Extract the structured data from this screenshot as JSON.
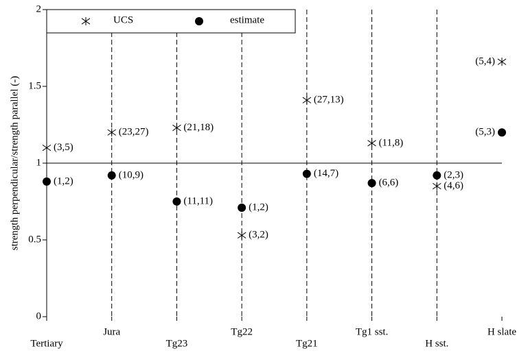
{
  "chart_data": {
    "type": "scatter",
    "y_label": "strength perpendicular/strength parallel (-)",
    "categories": [
      "Tertiary",
      "Jura",
      "Tg23",
      "Tg22",
      "Tg21",
      "Tg1 sst.",
      "H sst.",
      "H slate"
    ],
    "series": [
      {
        "name": "UCS",
        "marker": "star",
        "color": "#000000",
        "values": [
          1.1,
          1.2,
          1.23,
          0.53,
          1.41,
          1.13,
          0.85,
          1.66
        ],
        "point_labels": [
          "(3,5)",
          "(23,27)",
          "(21,18)",
          "(3,2)",
          "(27,13)",
          "(11,8)",
          "(4,6)",
          "(5,4)"
        ]
      },
      {
        "name": "estimate",
        "marker": "circle",
        "color": "#000000",
        "values": [
          0.88,
          0.92,
          0.75,
          0.71,
          0.93,
          0.87,
          0.92,
          1.2
        ],
        "point_labels": [
          "(1,2)",
          "(10,9)",
          "(11,11)",
          "(1,2)",
          "(14,7)",
          "(6,6)",
          "(2,3)",
          "(5,3)"
        ]
      }
    ],
    "reference_line": 1,
    "ylim": [
      0,
      2
    ],
    "yticks": [
      0,
      0.5,
      1,
      1.5,
      2
    ],
    "legend": "top-left"
  }
}
